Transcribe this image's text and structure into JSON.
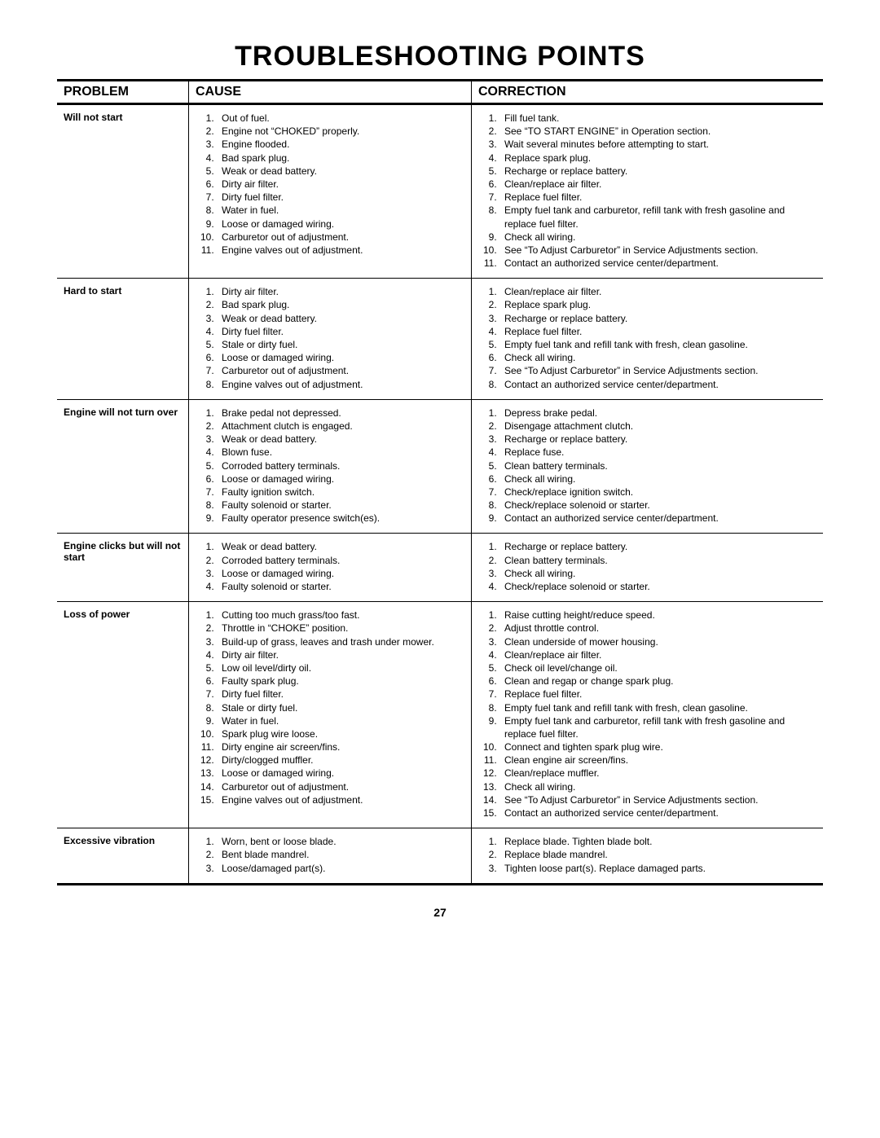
{
  "title": "TROUBLESHOOTING POINTS",
  "headers": {
    "problem": "PROBLEM",
    "cause": "CAUSE",
    "correction": "CORRECTION"
  },
  "page_number": "27",
  "rows": [
    {
      "problem": "Will not start",
      "causes": [
        "Out of fuel.",
        "Engine not “CHOKED” properly.",
        "Engine flooded.",
        "Bad spark plug.",
        "Weak or dead battery.",
        "Dirty air filter.",
        "Dirty fuel filter.",
        "Water in fuel.",
        "Loose or damaged wiring.",
        "Carburetor out of adjustment.",
        "Engine valves out of adjustment."
      ],
      "corrections": [
        "Fill fuel tank.",
        "See “TO START ENGINE” in Operation section.",
        "Wait several minutes before attempting to start.",
        "Replace spark plug.",
        "Recharge or replace battery.",
        "Clean/replace air filter.",
        "Replace fuel filter.",
        "Empty fuel tank and carburetor, refill tank with fresh gasoline and replace fuel filter.",
        "Check all wiring.",
        "See “To Adjust Carburetor” in Service Adjustments section.",
        "Contact an authorized service center/department."
      ]
    },
    {
      "problem": "Hard to start",
      "causes": [
        "Dirty air filter.",
        "Bad spark plug.",
        "Weak or dead battery.",
        "Dirty fuel filter.",
        "Stale or dirty fuel.",
        "Loose or damaged wiring.",
        "Carburetor out of adjustment.",
        "Engine valves out of adjustment."
      ],
      "corrections": [
        "Clean/replace air filter.",
        "Replace spark plug.",
        "Recharge or replace battery.",
        "Replace fuel filter.",
        "Empty fuel tank and refill tank with fresh, clean gasoline.",
        "Check all wiring.",
        "See “To Adjust Carburetor” in Service Adjustments section.",
        "Contact an authorized service center/department."
      ]
    },
    {
      "problem": "Engine will not turn over",
      "causes": [
        "Brake pedal not depressed.",
        "Attachment clutch is engaged.",
        "Weak or dead battery.",
        "Blown fuse.",
        "Corroded battery terminals.",
        "Loose or damaged wiring.",
        "Faulty ignition switch.",
        "Faulty solenoid or starter.",
        "Faulty operator presence switch(es)."
      ],
      "corrections": [
        "Depress brake pedal.",
        "Disengage attachment clutch.",
        "Recharge or replace battery.",
        "Replace fuse.",
        "Clean battery terminals.",
        "Check all wiring.",
        "Check/replace ignition switch.",
        "Check/replace solenoid or starter.",
        "Contact an authorized service center/department."
      ]
    },
    {
      "problem": "Engine clicks but will not start",
      "causes": [
        "Weak or dead battery.",
        "Corroded battery terminals.",
        "Loose or damaged wiring.",
        "Faulty solenoid or starter."
      ],
      "corrections": [
        "Recharge or replace battery.",
        "Clean battery terminals.",
        "Check all wiring.",
        "Check/replace solenoid or starter."
      ]
    },
    {
      "problem": "Loss of power",
      "causes": [
        "Cutting too much grass/too fast.",
        "Throttle in “CHOKE” position.",
        "Build-up of grass, leaves and trash under mower.",
        "Dirty air filter.",
        "Low oil level/dirty oil.",
        "Faulty spark plug.",
        "Dirty fuel filter.",
        "Stale or dirty fuel.",
        "Water in fuel.",
        "Spark plug wire loose.",
        "Dirty engine air screen/fins.",
        "Dirty/clogged muffler.",
        "Loose or damaged wiring.",
        "Carburetor out of adjustment.",
        "Engine valves out of adjustment."
      ],
      "corrections": [
        "Raise cutting height/reduce speed.",
        "Adjust throttle control.",
        "Clean underside of mower housing.",
        "Clean/replace air filter.",
        "Check oil level/change oil.",
        "Clean and regap or change spark plug.",
        "Replace fuel filter.",
        "Empty fuel tank and refill tank with fresh, clean gasoline.",
        "Empty fuel tank and carburetor, refill tank with fresh gasoline and replace fuel filter.",
        "Connect and tighten spark plug wire.",
        "Clean engine air screen/fins.",
        "Clean/replace muffler.",
        "Check all wiring.",
        "See “To Adjust Carburetor” in Service Adjustments section.",
        "Contact an authorized service center/department."
      ]
    },
    {
      "problem": "Excessive vibration",
      "causes": [
        "Worn, bent or loose blade.",
        "Bent blade mandrel.",
        "Loose/damaged part(s)."
      ],
      "corrections": [
        "Replace blade.  Tighten blade bolt.",
        "Replace blade mandrel.",
        "Tighten loose part(s).  Replace damaged parts."
      ]
    }
  ]
}
